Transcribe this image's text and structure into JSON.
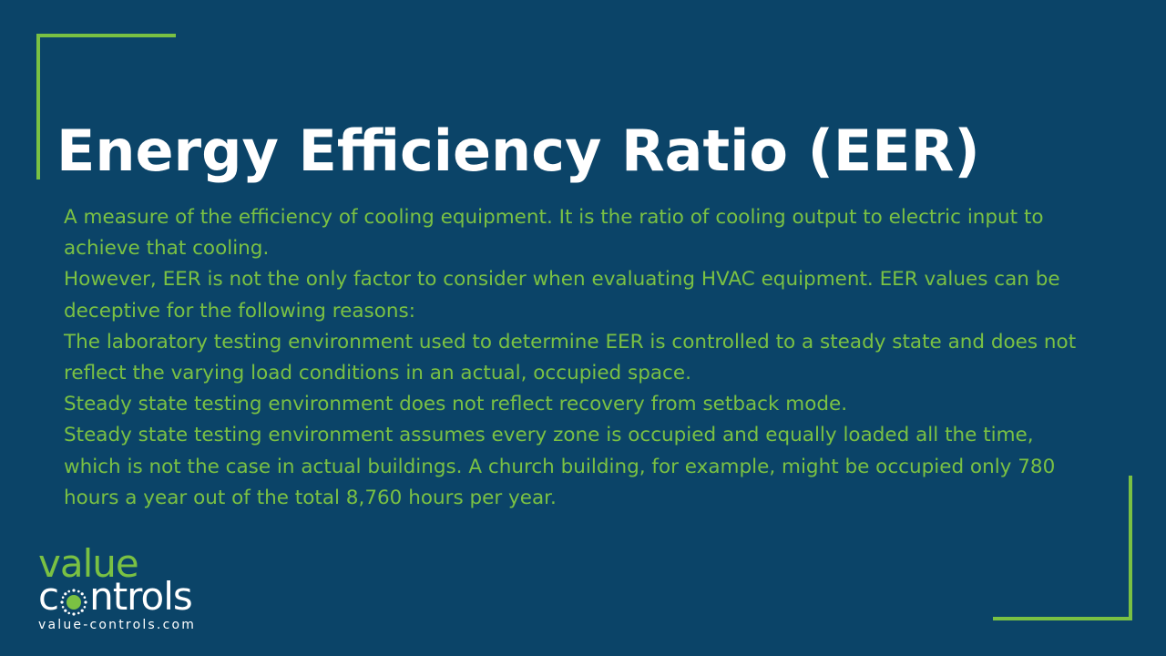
{
  "slide": {
    "title": "Energy Efficiency Ratio (EER)",
    "paragraphs": [
      "A measure of the efficiency of cooling equipment. It is the ratio of cooling output to electric input to achieve that cooling.",
      "However, EER is not the only factor to consider when evaluating HVAC equipment. EER values can be deceptive for the following reasons:",
      "The laboratory testing environment used to determine EER is controlled to a steady state and does not reflect the varying load conditions in an actual, occupied space.",
      "Steady state testing environment does not reflect recovery from setback mode.",
      "Steady state testing environment assumes every zone is occupied and equally loaded all the time, which is not the case in actual buildings. A church building, for example, might be occupied only 780 hours a year out of the total 8,760 hours per year."
    ]
  },
  "logo": {
    "word1": "value",
    "word2_prefix": "c",
    "word2_suffix": "ntrols",
    "url": "value-controls.com",
    "icon": "sun-icon"
  },
  "colors": {
    "background": "#0b4468",
    "accent": "#7ac143",
    "title": "#ffffff"
  }
}
